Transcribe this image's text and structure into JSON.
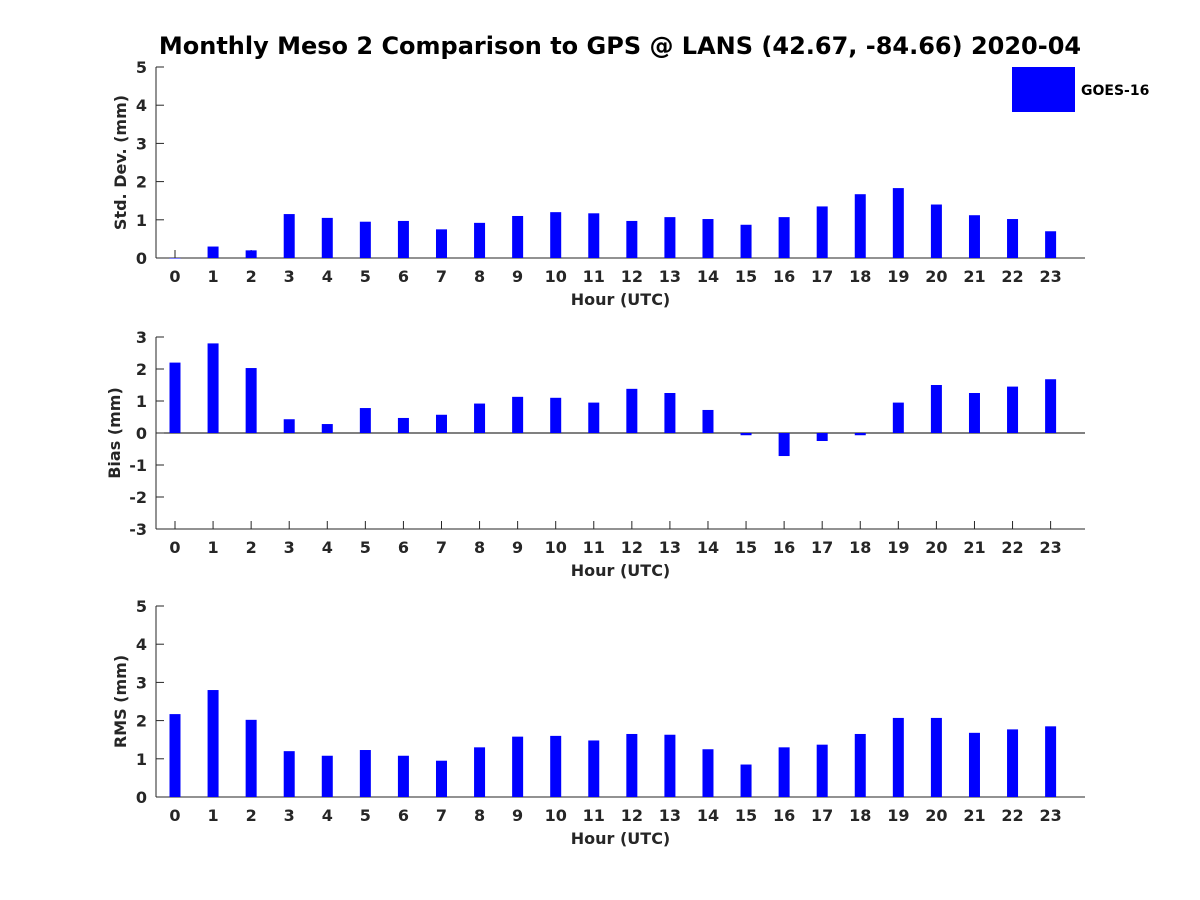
{
  "figure": {
    "title": "Monthly Meso 2 Comparison to GPS @ LANS (42.67, -84.66) 2020-04"
  },
  "legend": {
    "label": "GOES-16",
    "placement": "top-right"
  },
  "colors": {
    "bar": "#0000ff",
    "axis": "#262626"
  },
  "chart_data": [
    {
      "type": "bar",
      "xlabel": "Hour (UTC)",
      "ylabel": "Std. Dev. (mm)",
      "ylim": [
        0,
        5
      ],
      "yticks": [
        0,
        1,
        2,
        3,
        4,
        5
      ],
      "categories": [
        "0",
        "1",
        "2",
        "3",
        "4",
        "5",
        "6",
        "7",
        "8",
        "9",
        "10",
        "11",
        "12",
        "13",
        "14",
        "15",
        "16",
        "17",
        "18",
        "19",
        "20",
        "21",
        "22",
        "23"
      ],
      "series": [
        {
          "name": "GOES-16",
          "values": [
            0.0,
            0.3,
            0.2,
            1.15,
            1.05,
            0.95,
            0.97,
            0.75,
            0.92,
            1.1,
            1.2,
            1.17,
            0.97,
            1.07,
            1.02,
            0.87,
            1.07,
            1.35,
            1.67,
            1.83,
            1.4,
            1.12,
            1.02,
            0.7
          ]
        }
      ],
      "grid": false
    },
    {
      "type": "bar",
      "xlabel": "Hour (UTC)",
      "ylabel": "Bias (mm)",
      "ylim": [
        -3,
        3
      ],
      "yticks": [
        -3,
        -2,
        -1,
        0,
        1,
        2,
        3
      ],
      "categories": [
        "0",
        "1",
        "2",
        "3",
        "4",
        "5",
        "6",
        "7",
        "8",
        "9",
        "10",
        "11",
        "12",
        "13",
        "14",
        "15",
        "16",
        "17",
        "18",
        "19",
        "20",
        "21",
        "22",
        "23"
      ],
      "series": [
        {
          "name": "GOES-16",
          "values": [
            2.2,
            2.8,
            2.03,
            0.43,
            0.28,
            0.78,
            0.47,
            0.57,
            0.92,
            1.13,
            1.1,
            0.95,
            1.38,
            1.25,
            0.72,
            -0.07,
            -0.72,
            -0.25,
            -0.07,
            0.95,
            1.5,
            1.25,
            1.45,
            1.68
          ]
        }
      ],
      "grid": false
    },
    {
      "type": "bar",
      "xlabel": "Hour (UTC)",
      "ylabel": "RMS (mm)",
      "ylim": [
        0,
        5
      ],
      "yticks": [
        0,
        1,
        2,
        3,
        4,
        5
      ],
      "categories": [
        "0",
        "1",
        "2",
        "3",
        "4",
        "5",
        "6",
        "7",
        "8",
        "9",
        "10",
        "11",
        "12",
        "13",
        "14",
        "15",
        "16",
        "17",
        "18",
        "19",
        "20",
        "21",
        "22",
        "23"
      ],
      "series": [
        {
          "name": "GOES-16",
          "values": [
            2.17,
            2.8,
            2.02,
            1.2,
            1.08,
            1.23,
            1.08,
            0.95,
            1.3,
            1.58,
            1.6,
            1.48,
            1.65,
            1.63,
            1.25,
            0.85,
            1.3,
            1.37,
            1.65,
            2.07,
            2.07,
            1.68,
            1.77,
            1.85
          ]
        }
      ],
      "grid": false
    }
  ]
}
